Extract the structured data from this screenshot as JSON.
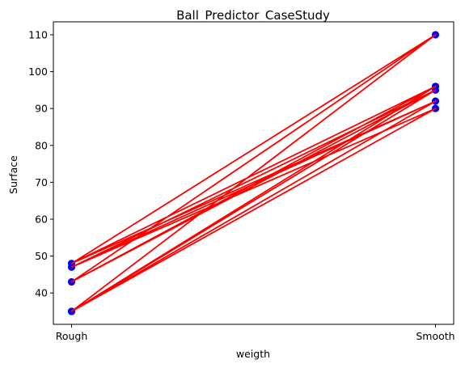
{
  "chart_data": {
    "type": "line",
    "title": "Ball_Predictor_CaseStudy",
    "xlabel": "weigth",
    "ylabel": "Surface",
    "categories": [
      "Rough",
      "Smooth"
    ],
    "xlim": [
      -0.05,
      1.05
    ],
    "ylim": [
      31.5,
      113.5
    ],
    "yticks": [
      40,
      50,
      60,
      70,
      80,
      90,
      100,
      110
    ],
    "grid": false,
    "line_color": "#ff0000",
    "marker_color": "#0000ff",
    "points": [
      {
        "x": "Rough",
        "y": 48
      },
      {
        "x": "Smooth",
        "y": 110
      },
      {
        "x": "Rough",
        "y": 43
      },
      {
        "x": "Smooth",
        "y": 96
      },
      {
        "x": "Rough",
        "y": 35
      },
      {
        "x": "Smooth",
        "y": 95
      },
      {
        "x": "Rough",
        "y": 47
      },
      {
        "x": "Smooth",
        "y": 90
      },
      {
        "x": "Rough",
        "y": 35
      },
      {
        "x": "Smooth",
        "y": 92
      },
      {
        "x": "Rough",
        "y": 48
      },
      {
        "x": "Smooth",
        "y": 96
      },
      {
        "x": "Rough",
        "y": 35
      },
      {
        "x": "Smooth",
        "y": 110
      },
      {
        "x": "Rough",
        "y": 43
      },
      {
        "x": "Smooth",
        "y": 95
      },
      {
        "x": "Rough",
        "y": 35
      },
      {
        "x": "Smooth",
        "y": 90
      },
      {
        "x": "Rough",
        "y": 47
      },
      {
        "x": "Smooth",
        "y": 92
      },
      {
        "x": "Rough",
        "y": 35
      },
      {
        "x": "Smooth",
        "y": 96
      },
      {
        "x": "Rough",
        "y": 35
      }
    ]
  }
}
